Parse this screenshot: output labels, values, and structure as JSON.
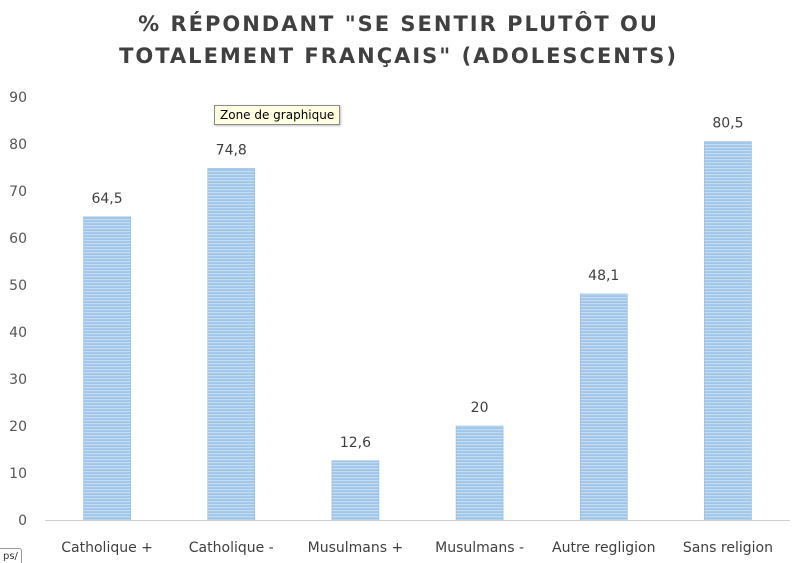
{
  "chart_data": {
    "type": "bar",
    "title": [
      "% RÉPONDANT \"SE SENTIR PLUTÔT OU",
      "TOTALEMENT FRANÇAIS\" (ADOLESCENTS)"
    ],
    "categories": [
      "Catholique +",
      "Catholique -",
      "Musulmans +",
      "Musulmans -",
      "Autre regligion",
      "Sans religion"
    ],
    "values": [
      64.5,
      74.8,
      12.6,
      20,
      48.1,
      80.5
    ],
    "data_labels": [
      "64,5",
      "74,8",
      "12,6",
      "20",
      "48,1",
      "80,5"
    ],
    "ylim": [
      0,
      90
    ],
    "yticks": [
      0,
      10,
      20,
      30,
      40,
      50,
      60,
      70,
      80,
      90
    ],
    "xlabel": "",
    "ylabel": "",
    "grid": false,
    "legend": "none",
    "bar_color": "#9fc5e8",
    "bar_stripe_color": "#c6ddf1"
  },
  "tooltip": {
    "text": "Zone de graphique"
  },
  "corner_fragment": {
    "text": "ps/"
  }
}
